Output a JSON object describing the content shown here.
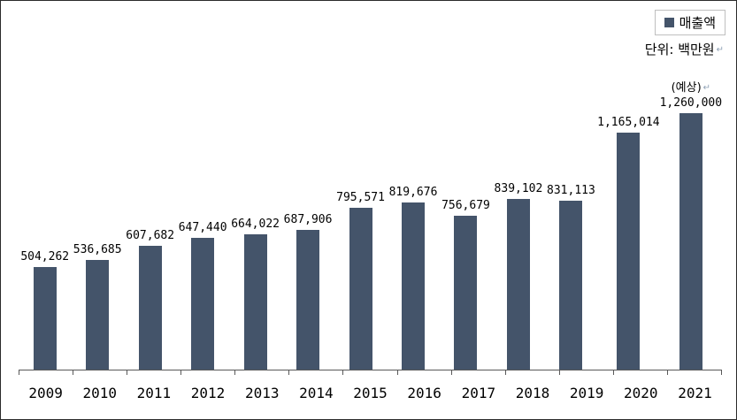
{
  "legend": {
    "label": "매출액",
    "marker_color": "#44546A"
  },
  "unit_label": "단위: 백만원",
  "return_mark": "↵",
  "chart_data": {
    "type": "bar",
    "title": "",
    "xlabel": "",
    "ylabel": "",
    "unit": "백만원",
    "grid": false,
    "legend_position": "top-right",
    "bar_color": "#44546A",
    "axis_color": "#595959",
    "ylim": [
      0,
      1260000
    ],
    "categories": [
      "2009",
      "2010",
      "2011",
      "2012",
      "2013",
      "2014",
      "2015",
      "2016",
      "2017",
      "2018",
      "2019",
      "2020",
      "2021"
    ],
    "series": [
      {
        "name": "매출액",
        "values": [
          504262,
          536685,
          607682,
          647440,
          664022,
          687906,
          795571,
          819676,
          756679,
          839102,
          831113,
          1165014,
          1260000
        ],
        "labels": [
          "504,262",
          "536,685",
          "607,682",
          "647,440",
          "664,022",
          "687,906",
          "795,571",
          "819,676",
          "756,679",
          "839,102",
          "831,113",
          "1,165,014",
          "1,260,000"
        ]
      }
    ],
    "annotations": [
      {
        "category": "2021",
        "text": "(예상)"
      }
    ]
  }
}
